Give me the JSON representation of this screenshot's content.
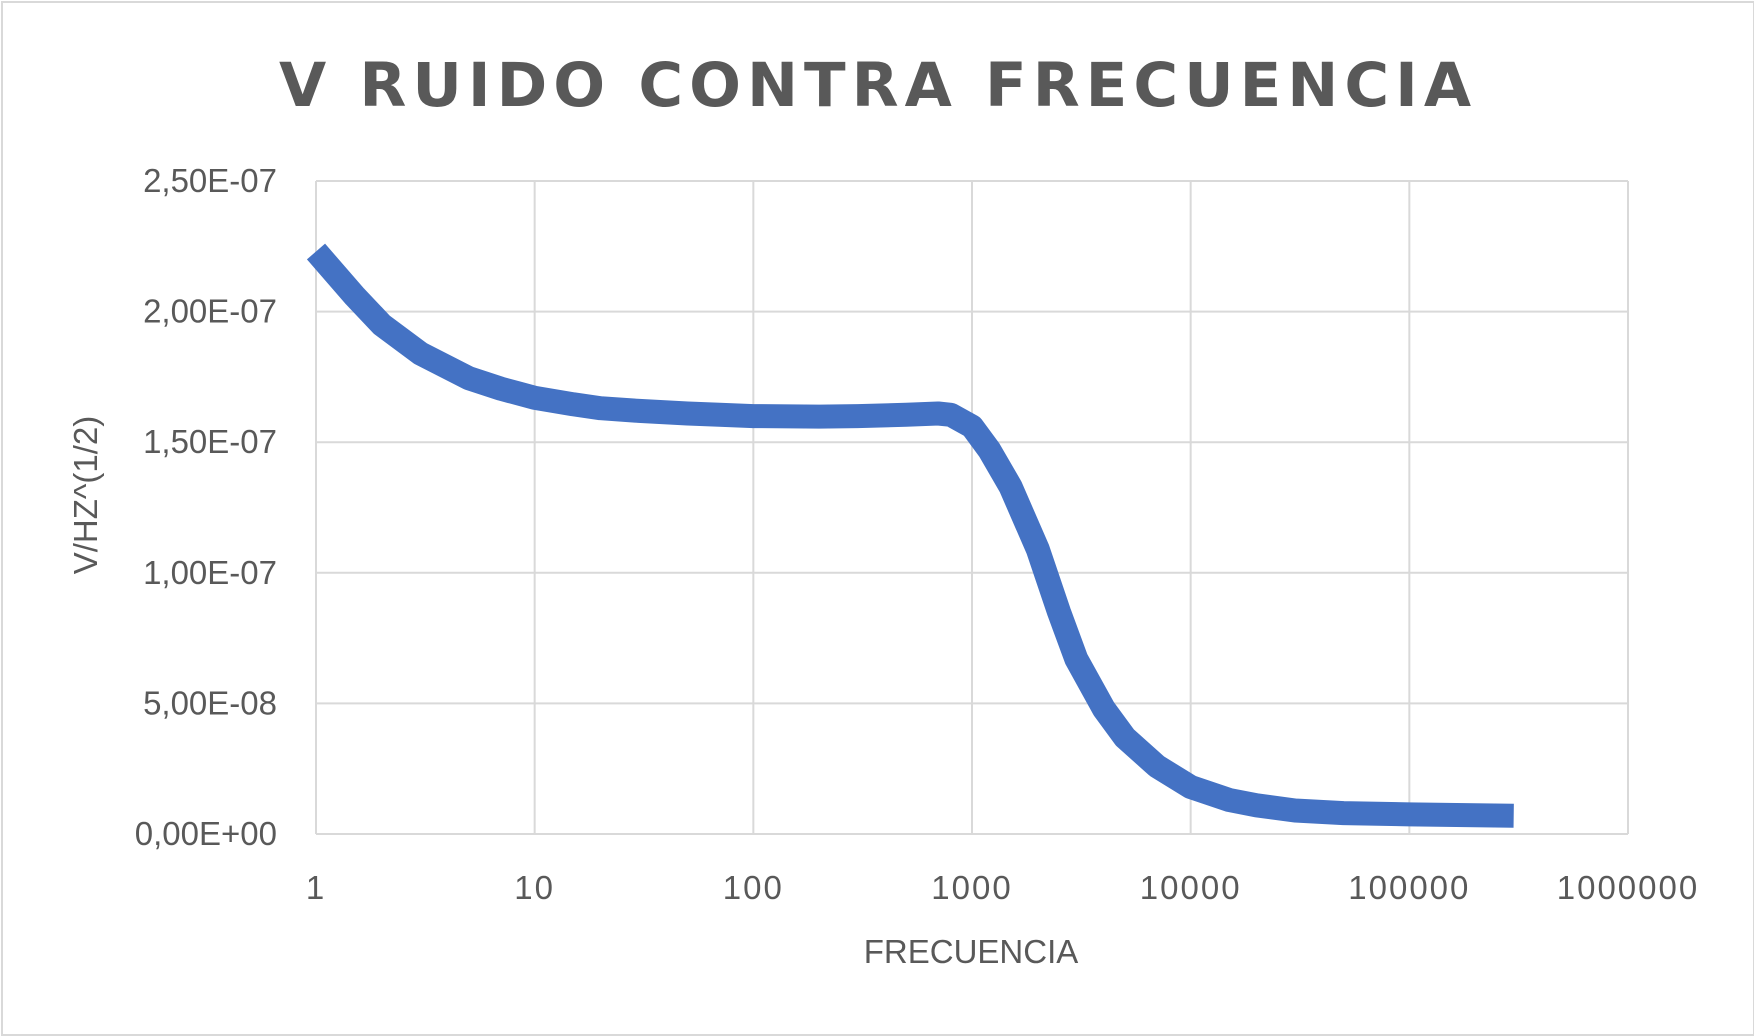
{
  "chart_data": {
    "type": "line",
    "title": "V RUIDO CONTRA FRECUENCIA",
    "xlabel": "FRECUENCIA",
    "ylabel": "V/HZ^(1/2)",
    "x_scale": "log",
    "xlim": [
      1,
      1000000
    ],
    "ylim": [
      0,
      2.5e-07
    ],
    "grid": true,
    "legend": "none",
    "series_color": "#4472c4",
    "x_tick_labels": [
      "1",
      "10",
      "100",
      "1000",
      "10000",
      "100000",
      "1000000"
    ],
    "y_tick_labels": [
      "0,00E+00",
      "5,00E-08",
      "1,00E-07",
      "1,50E-07",
      "2,00E-07",
      "2,50E-07"
    ],
    "series": [
      {
        "x": [
          1,
          1.5,
          2,
          3,
          5,
          7,
          10,
          15,
          20,
          30,
          50,
          70,
          100,
          200,
          300,
          500,
          700,
          800,
          1000,
          1200,
          1500,
          2000,
          2500,
          3000,
          4000,
          5000,
          7000,
          10000,
          15000,
          20000,
          30000,
          50000,
          100000,
          200000,
          300000
        ],
        "y": [
          2.23e-07,
          2.06e-07,
          1.95e-07,
          1.84e-07,
          1.745e-07,
          1.705e-07,
          1.67e-07,
          1.645e-07,
          1.63e-07,
          1.62e-07,
          1.61e-07,
          1.605e-07,
          1.6e-07,
          1.598e-07,
          1.6e-07,
          1.605e-07,
          1.61e-07,
          1.605e-07,
          1.56e-07,
          1.47e-07,
          1.33e-07,
          1.09e-07,
          8.5e-08,
          6.7e-08,
          4.8e-08,
          3.7e-08,
          2.6e-08,
          1.8e-08,
          1.3e-08,
          1.1e-08,
          9e-09,
          8e-09,
          7.5e-09,
          7.2e-09,
          7e-09
        ]
      }
    ]
  }
}
